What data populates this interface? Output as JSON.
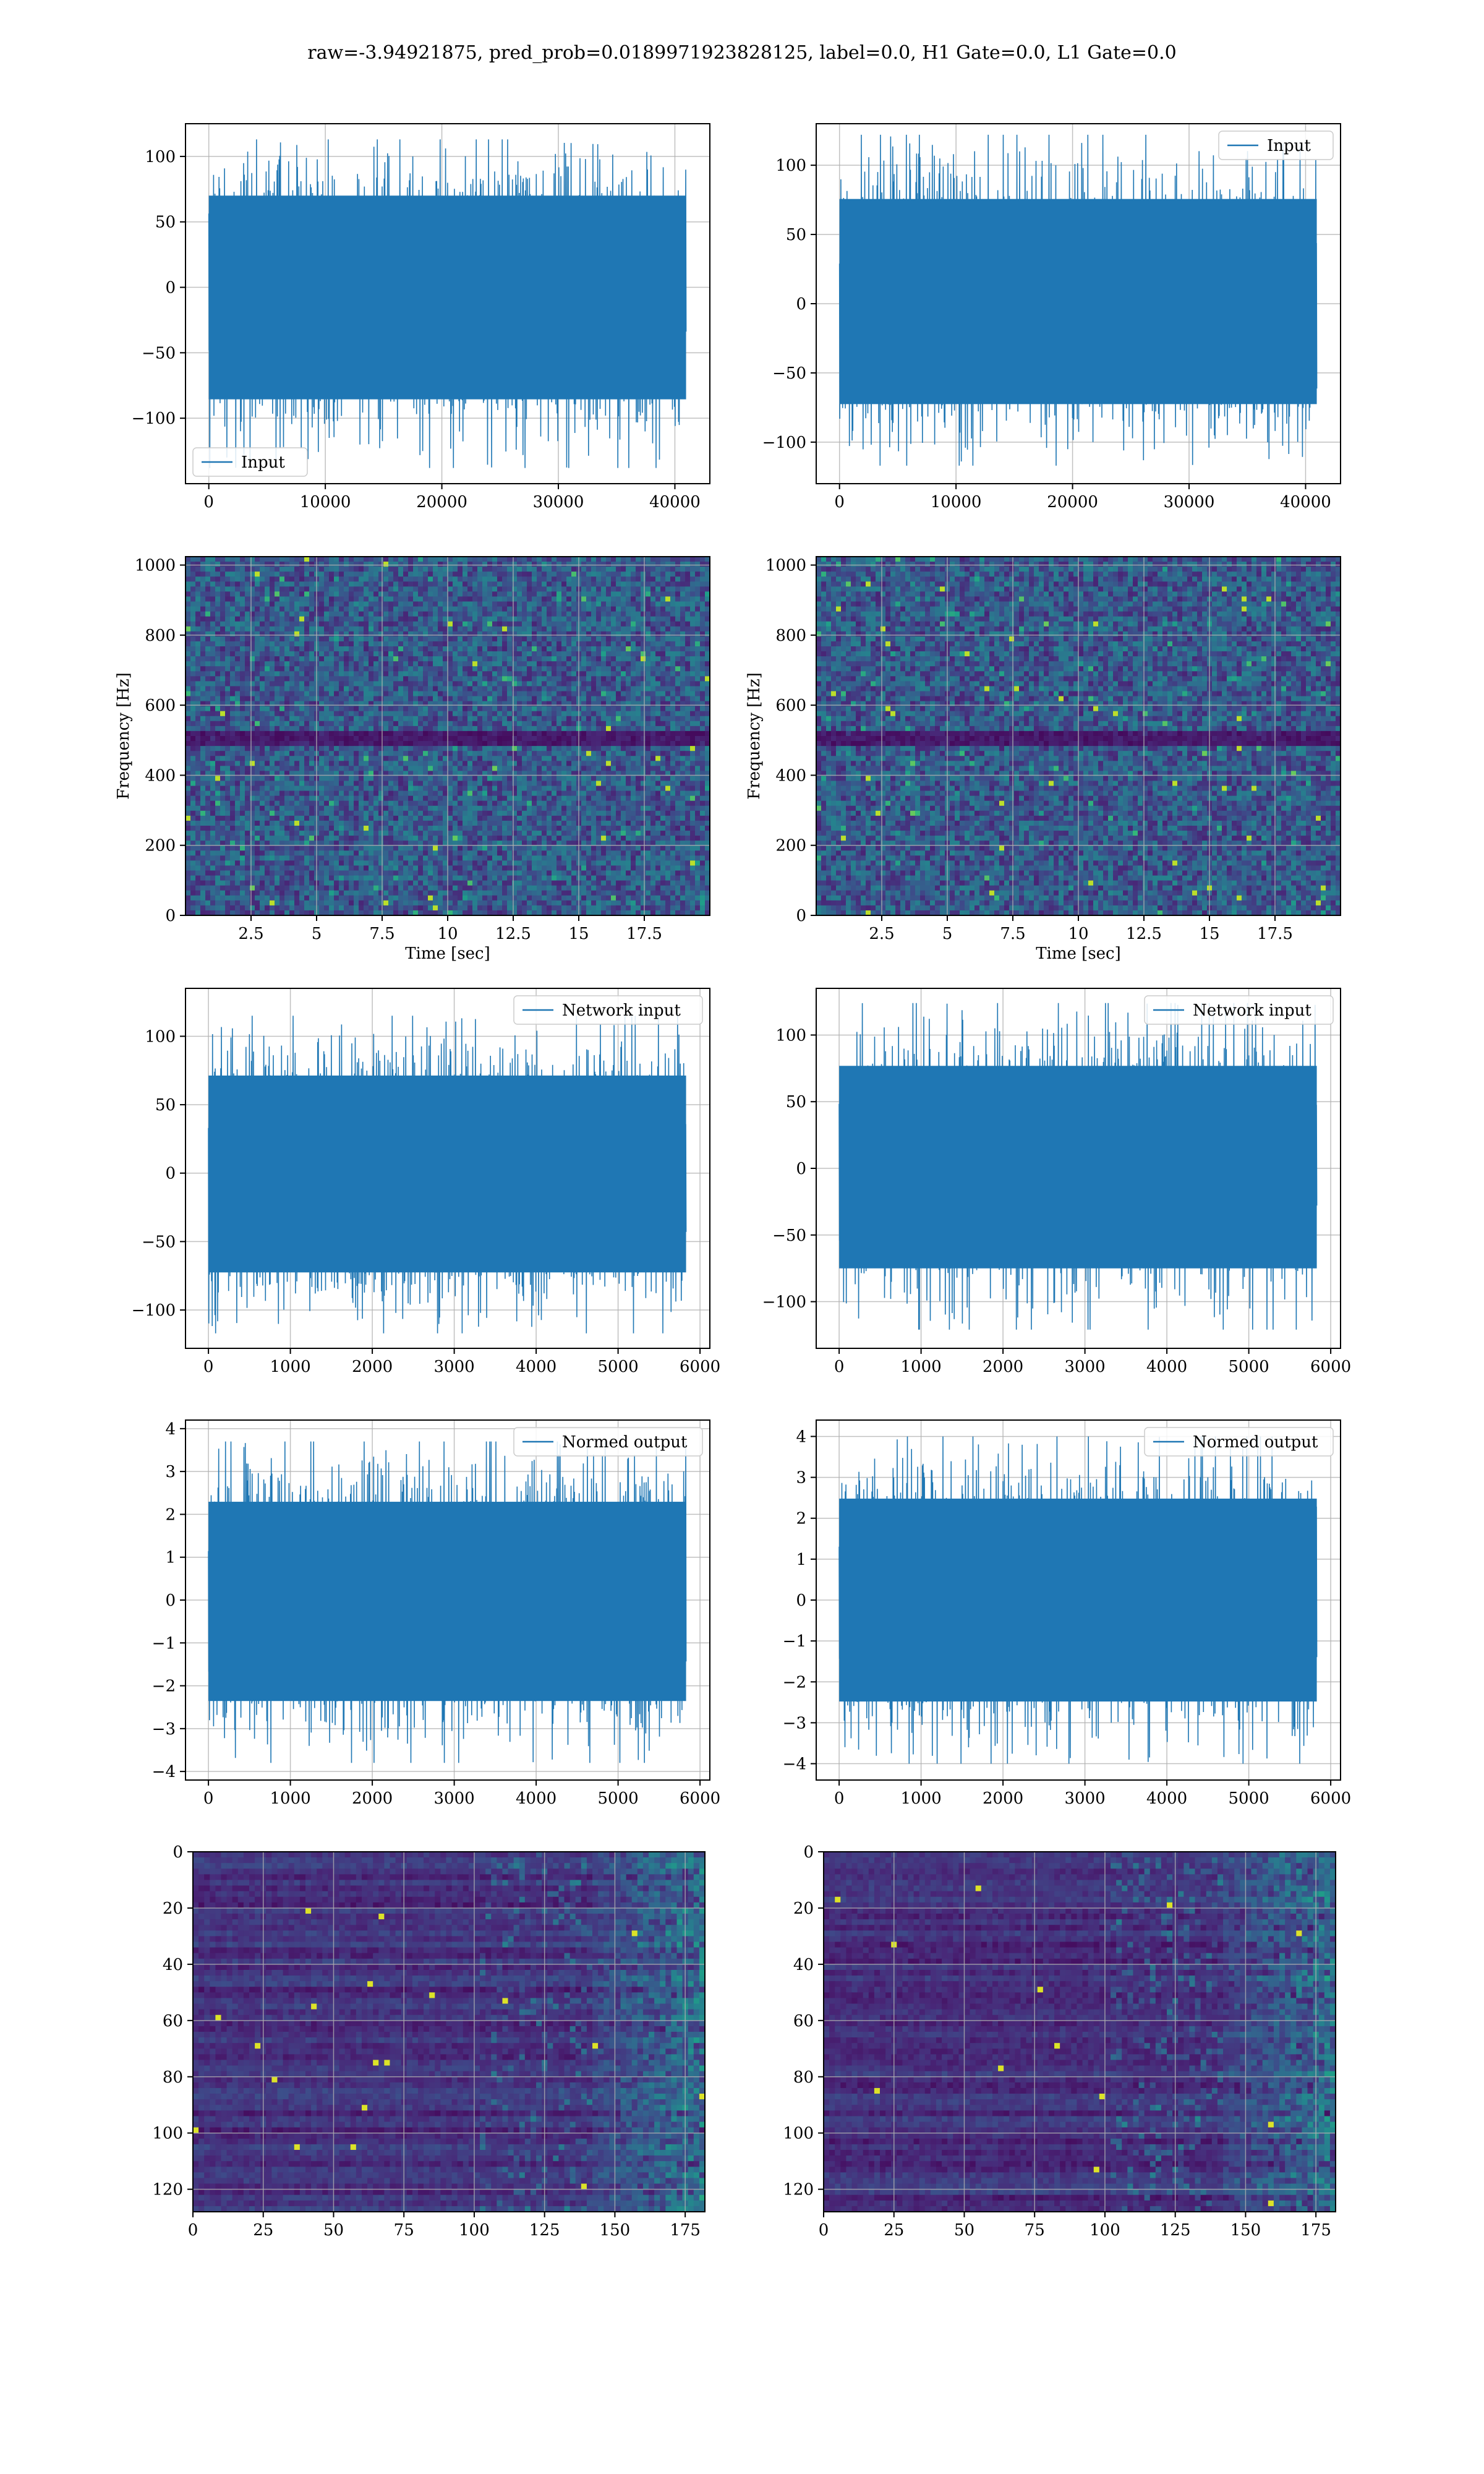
{
  "suptitle": "raw=-3.94921875, pred_prob=0.0189971923828125, label=0.0, H1 Gate=0.0, L1 Gate=0.0",
  "colors": {
    "line": "#1f77b4",
    "grid": "#b0b0b0",
    "viridis_dark": "#440154",
    "viridis_bright": "#fde725"
  },
  "chart_data": [
    {
      "id": "r1-left",
      "type": "line",
      "row": 1,
      "col": "left",
      "series": [
        {
          "name": "Input",
          "x_range": [
            0,
            40960
          ],
          "amplitude_range": [
            -138,
            113
          ]
        }
      ],
      "legend": "lower left",
      "xlim": [
        -2000,
        43000
      ],
      "ylim": [
        -150,
        125
      ],
      "xticks": [
        0,
        10000,
        20000,
        30000,
        40000
      ],
      "yticks": [
        -100,
        -50,
        0,
        50,
        100
      ],
      "xlabel": "",
      "ylabel": "",
      "grid": true
    },
    {
      "id": "r1-right",
      "type": "line",
      "row": 1,
      "col": "right",
      "series": [
        {
          "name": "Input",
          "x_range": [
            0,
            40960
          ],
          "amplitude_range": [
            -117,
            122
          ]
        }
      ],
      "legend": "upper right",
      "xlim": [
        -2000,
        43000
      ],
      "ylim": [
        -130,
        130
      ],
      "xticks": [
        0,
        10000,
        20000,
        30000,
        40000
      ],
      "yticks": [
        -100,
        -50,
        0,
        50,
        100
      ],
      "xlabel": "",
      "ylabel": "",
      "grid": true
    },
    {
      "id": "r2-left",
      "type": "heatmap",
      "row": 2,
      "col": "left",
      "xlim": [
        0,
        20
      ],
      "ylim": [
        0,
        1024
      ],
      "xticks": [
        2.5,
        5.0,
        7.5,
        10.0,
        12.5,
        15.0,
        17.5
      ],
      "yticks": [
        0,
        200,
        400,
        600,
        800,
        1000
      ],
      "xlabel": "Time [sec]",
      "ylabel": "Frequency [Hz]",
      "colormap": "viridis",
      "dark_band_hz": 500,
      "grid": true
    },
    {
      "id": "r2-right",
      "type": "heatmap",
      "row": 2,
      "col": "right",
      "xlim": [
        0,
        20
      ],
      "ylim": [
        0,
        1024
      ],
      "xticks": [
        2.5,
        5.0,
        7.5,
        10.0,
        12.5,
        15.0,
        17.5
      ],
      "yticks": [
        0,
        200,
        400,
        600,
        800,
        1000
      ],
      "xlabel": "Time [sec]",
      "ylabel": "Frequency [Hz]",
      "colormap": "viridis",
      "dark_band_hz": 500,
      "grid": true
    },
    {
      "id": "r3-left",
      "type": "line",
      "row": 3,
      "col": "left",
      "series": [
        {
          "name": "Network input",
          "x_range": [
            0,
            5830
          ],
          "amplitude_range": [
            -117,
            115
          ]
        }
      ],
      "legend": "upper right",
      "xlim": [
        -280,
        6120
      ],
      "ylim": [
        -128,
        135
      ],
      "xticks": [
        0,
        1000,
        2000,
        3000,
        4000,
        5000,
        6000
      ],
      "yticks": [
        -100,
        -50,
        0,
        50,
        100
      ],
      "xlabel": "",
      "ylabel": "",
      "grid": true
    },
    {
      "id": "r3-right",
      "type": "line",
      "row": 3,
      "col": "right",
      "series": [
        {
          "name": "Network input",
          "x_range": [
            0,
            5830
          ],
          "amplitude_range": [
            -121,
            124
          ]
        }
      ],
      "legend": "upper right",
      "xlim": [
        -280,
        6120
      ],
      "ylim": [
        -135,
        135
      ],
      "xticks": [
        0,
        1000,
        2000,
        3000,
        4000,
        5000,
        6000
      ],
      "yticks": [
        -100,
        -50,
        0,
        50,
        100
      ],
      "xlabel": "",
      "ylabel": "",
      "grid": true
    },
    {
      "id": "r4-left",
      "type": "line",
      "row": 4,
      "col": "left",
      "series": [
        {
          "name": "Normed output",
          "x_range": [
            0,
            5830
          ],
          "amplitude_range": [
            -3.8,
            3.7
          ]
        }
      ],
      "legend": "upper right",
      "xlim": [
        -280,
        6120
      ],
      "ylim": [
        -4.2,
        4.2
      ],
      "xticks": [
        0,
        1000,
        2000,
        3000,
        4000,
        5000,
        6000
      ],
      "yticks": [
        -4,
        -3,
        -2,
        -1,
        0,
        1,
        2,
        3,
        4
      ],
      "xlabel": "",
      "ylabel": "",
      "grid": true
    },
    {
      "id": "r4-right",
      "type": "line",
      "row": 4,
      "col": "right",
      "series": [
        {
          "name": "Normed output",
          "x_range": [
            0,
            5830
          ],
          "amplitude_range": [
            -4.0,
            4.0
          ]
        }
      ],
      "legend": "upper right",
      "xlim": [
        -280,
        6120
      ],
      "ylim": [
        -4.4,
        4.4
      ],
      "xticks": [
        0,
        1000,
        2000,
        3000,
        4000,
        5000,
        6000
      ],
      "yticks": [
        -4,
        -3,
        -2,
        -1,
        0,
        1,
        2,
        3,
        4
      ],
      "xlabel": "",
      "ylabel": "",
      "grid": true
    },
    {
      "id": "r5-left",
      "type": "heatmap",
      "row": 5,
      "col": "left",
      "xlim": [
        0,
        182
      ],
      "ylim": [
        128,
        0
      ],
      "xticks": [
        0,
        25,
        50,
        75,
        100,
        125,
        150,
        175
      ],
      "yticks": [
        0,
        20,
        40,
        60,
        80,
        100,
        120
      ],
      "xlabel": "",
      "ylabel": "",
      "colormap": "viridis",
      "grid": true
    },
    {
      "id": "r5-right",
      "type": "heatmap",
      "row": 5,
      "col": "right",
      "xlim": [
        0,
        182
      ],
      "ylim": [
        128,
        0
      ],
      "xticks": [
        0,
        25,
        50,
        75,
        100,
        125,
        150,
        175
      ],
      "yticks": [
        0,
        20,
        40,
        60,
        80,
        100,
        120
      ],
      "xlabel": "",
      "ylabel": "",
      "colormap": "viridis",
      "grid": true
    }
  ]
}
